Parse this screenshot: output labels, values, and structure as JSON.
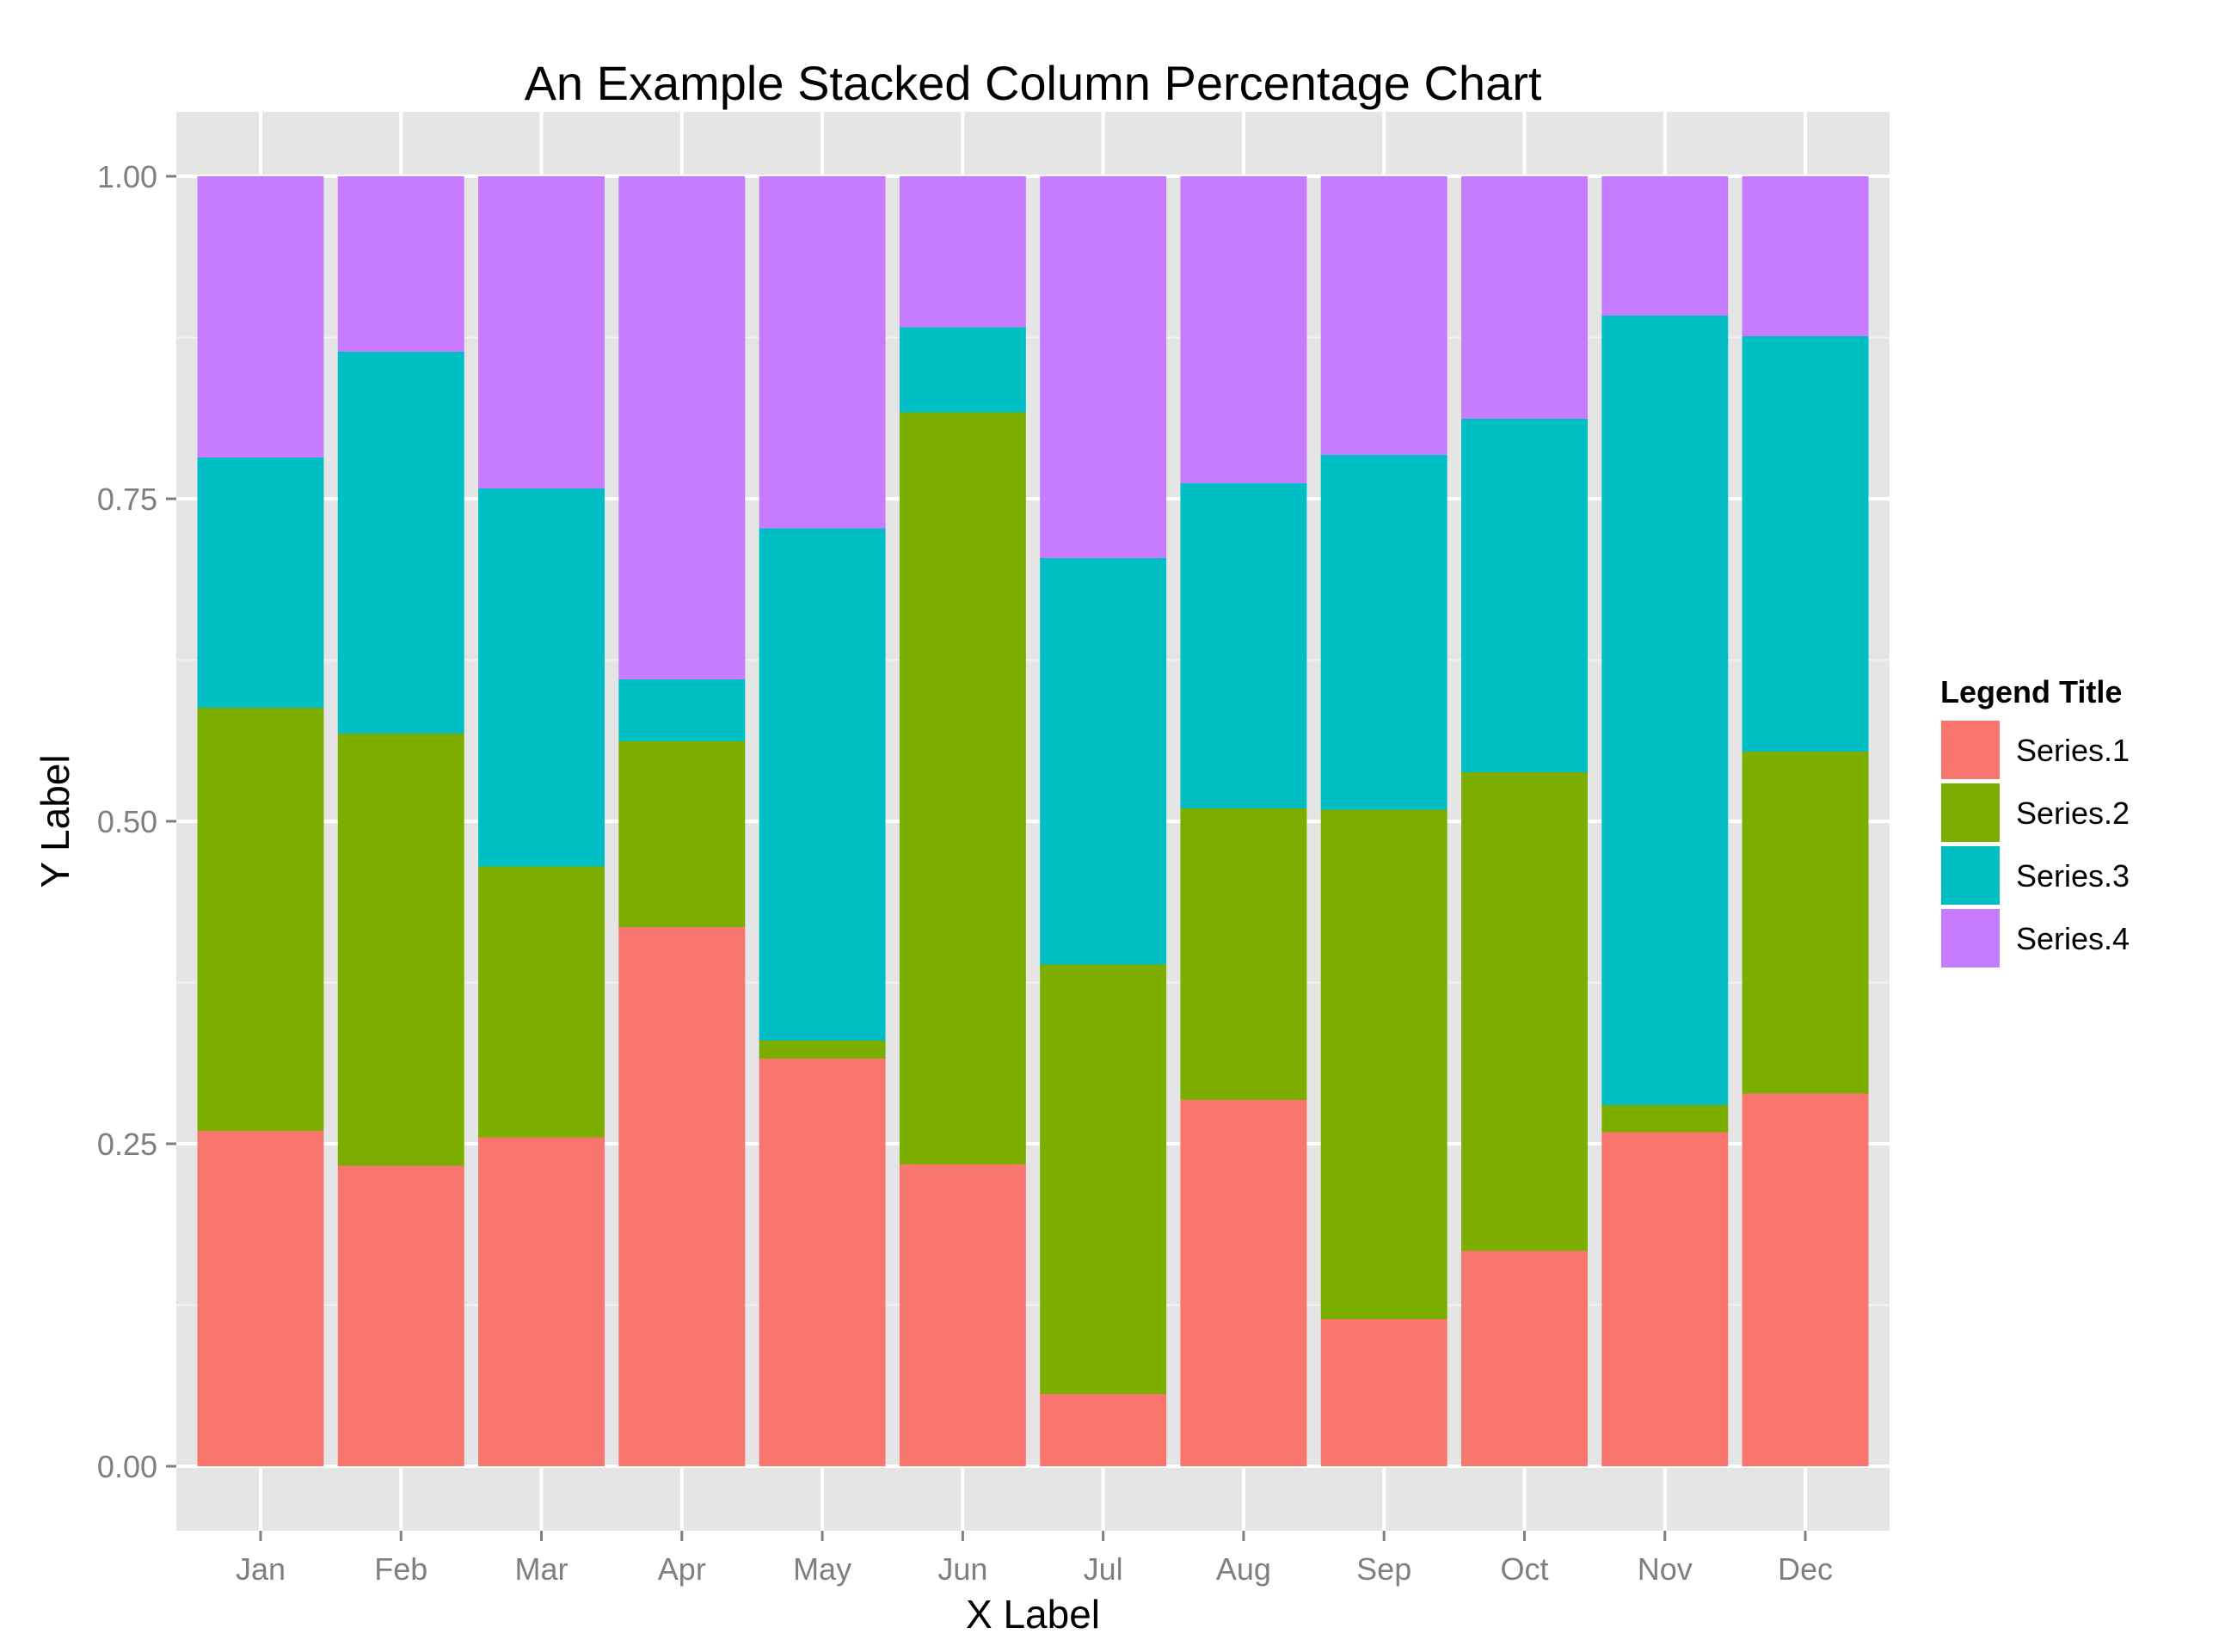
{
  "chart_data": {
    "type": "bar",
    "stacked": true,
    "title": "An Example Stacked Column Percentage Chart",
    "xlabel": "X Label",
    "ylabel": "Y Label",
    "ylim": [
      -0.05,
      1.05
    ],
    "yticks": [
      0.0,
      0.25,
      0.5,
      0.75,
      1.0
    ],
    "ytick_labels": [
      "0.00",
      "0.25",
      "0.50",
      "0.75",
      "1.00"
    ],
    "grid": true,
    "legend": {
      "title": "Legend Title",
      "position": "right"
    },
    "categories": [
      "Jan",
      "Feb",
      "Mar",
      "Apr",
      "May",
      "Jun",
      "Jul",
      "Aug",
      "Sep",
      "Oct",
      "Nov",
      "Dec"
    ],
    "series": [
      {
        "name": "Series.1",
        "color": "#F8766D",
        "values": [
          0.26,
          0.233,
          0.255,
          0.418,
          0.316,
          0.234,
          0.056,
          0.284,
          0.114,
          0.167,
          0.259,
          0.289
        ]
      },
      {
        "name": "Series.2",
        "color": "#7CAE00",
        "values": [
          0.328,
          0.335,
          0.21,
          0.144,
          0.014,
          0.583,
          0.333,
          0.226,
          0.395,
          0.371,
          0.021,
          0.265
        ]
      },
      {
        "name": "Series.3",
        "color": "#00BFC4",
        "values": [
          0.194,
          0.296,
          0.293,
          0.048,
          0.397,
          0.066,
          0.315,
          0.252,
          0.275,
          0.274,
          0.612,
          0.322
        ]
      },
      {
        "name": "Series.4",
        "color": "#C77CFF",
        "values": [
          0.218,
          0.136,
          0.242,
          0.39,
          0.273,
          0.117,
          0.296,
          0.238,
          0.216,
          0.188,
          0.108,
          0.124
        ]
      }
    ]
  }
}
